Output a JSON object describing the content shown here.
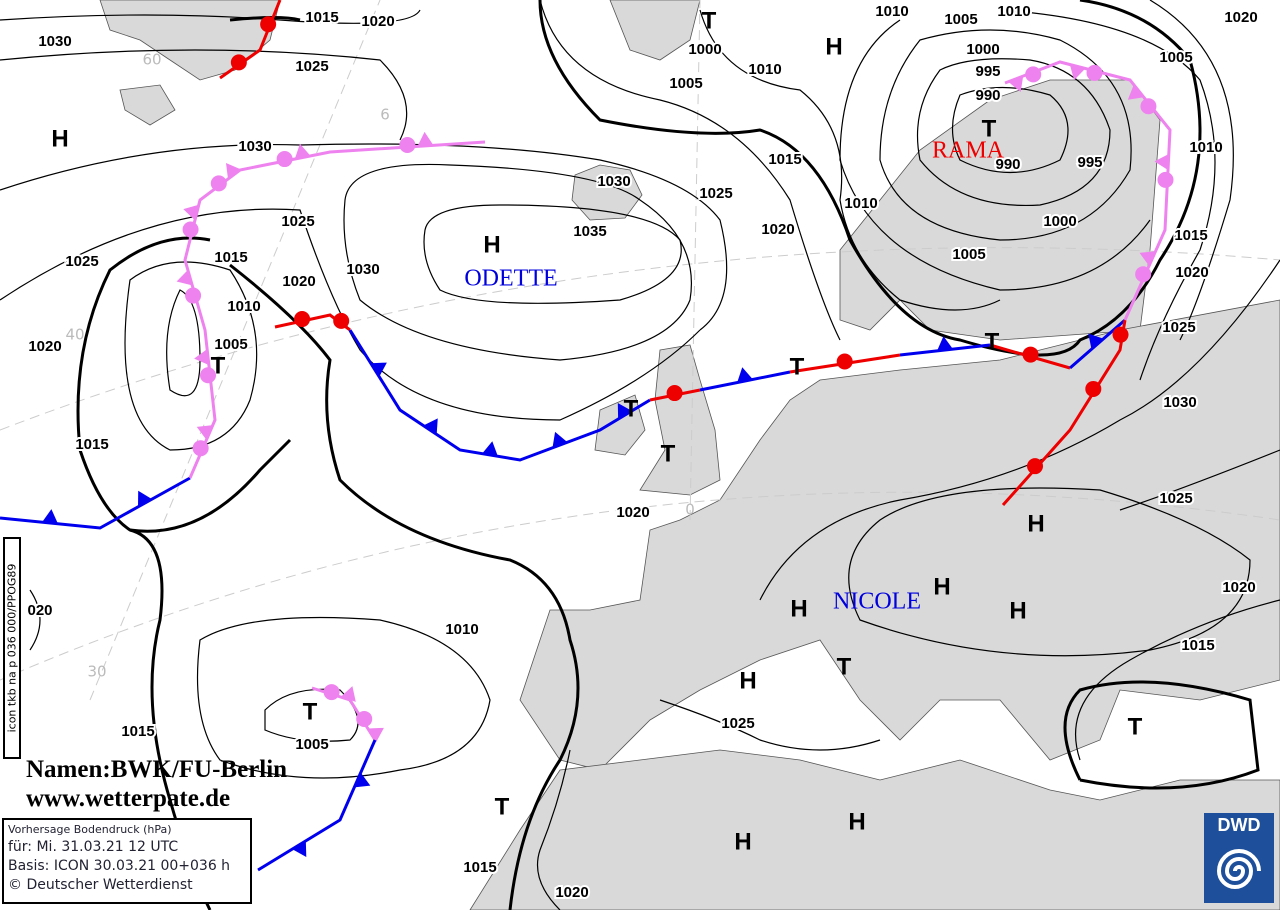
{
  "isobar_labels": [
    "1030",
    "1015",
    "1020",
    "1025",
    "1030",
    "1025",
    "1025",
    "1015",
    "1020",
    "1010",
    "1005",
    "1020",
    "1015",
    "1030",
    "1035",
    "1030",
    "1025",
    "1020",
    "1015",
    "1010",
    "1005",
    "1000",
    "1010",
    "1005",
    "1010",
    "1020",
    "1000",
    "995",
    "990",
    "990",
    "995",
    "1005",
    "1010",
    "1010",
    "1000",
    "1005",
    "1015",
    "1020",
    "1025",
    "1030",
    "1025",
    "1020",
    "1015",
    "1020",
    "1010",
    "1025",
    "1005",
    "1015",
    "1015",
    "1020",
    "020"
  ],
  "pressure_centers": [
    "H",
    "H",
    "T",
    "T",
    "H",
    "T",
    "T",
    "T",
    "T",
    "T",
    "H",
    "H",
    "H",
    "H",
    "T",
    "H",
    "T",
    "T",
    "T",
    "H",
    "H"
  ],
  "system_names": [
    {
      "name": "ODETTE",
      "color": "#0000dd"
    },
    {
      "name": "RAMA",
      "color": "#ee0000"
    },
    {
      "name": "NICOLE",
      "color": "#0000dd"
    }
  ],
  "grid_labels": [
    "60",
    "6",
    "40",
    "30",
    "0"
  ],
  "credits": {
    "line1": "Namen:BWK/FU-Berlin",
    "line2": "www.wetterpate.de"
  },
  "info_box": {
    "title": "Vorhersage Bodendruck (hPa)",
    "valid": "für:  Mi. 31.03.21  12 UTC",
    "basis": "Basis: ICON  30.03.21 00+036 h",
    "copyright": "© Deutscher Wetterdienst"
  },
  "product_code": "icon tkb na p 036 000/PPOG89",
  "logo": {
    "text": "DWD",
    "color": "#1d4f9a"
  },
  "colors": {
    "land": "#d9d9d9",
    "cold_front": "#0000ee",
    "warm_front": "#ee0000",
    "occlusion": "#ee82ee"
  }
}
